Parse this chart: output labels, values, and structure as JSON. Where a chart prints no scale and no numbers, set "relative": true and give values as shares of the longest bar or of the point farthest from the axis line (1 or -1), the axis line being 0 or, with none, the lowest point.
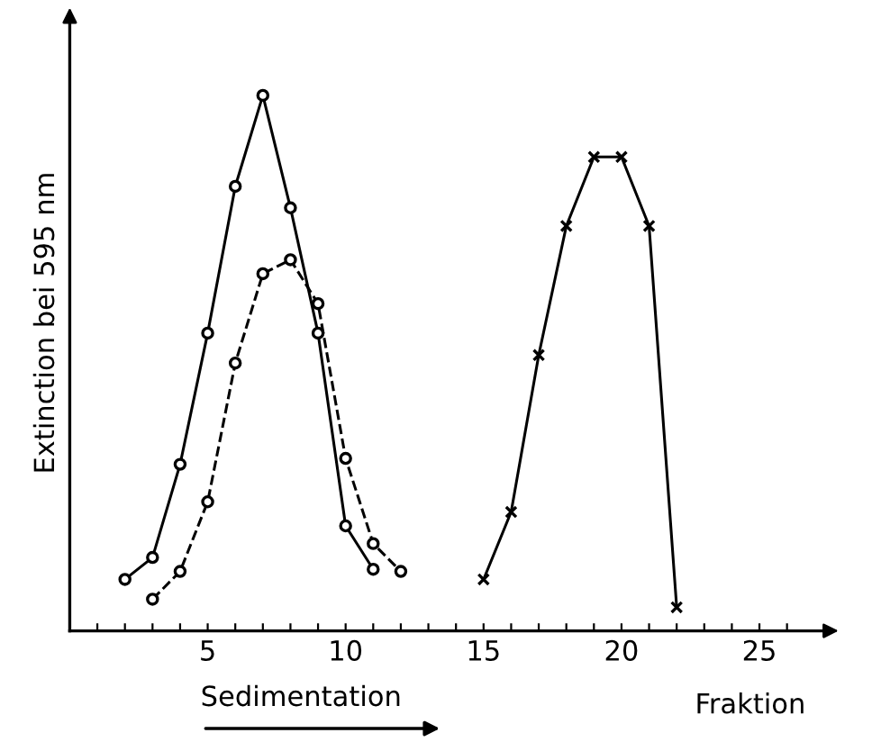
{
  "chart_data": {
    "type": "line",
    "relative": true,
    "xlabel": "Fraktion",
    "ylabel": "Extinction bei 595 nm",
    "annotations": [
      "Sedimentation"
    ],
    "xlim": [
      0,
      27.5
    ],
    "xticks": [
      {
        "value": 1,
        "label": null
      },
      {
        "value": 2,
        "label": null
      },
      {
        "value": 3,
        "label": null
      },
      {
        "value": 4,
        "label": null
      },
      5,
      {
        "value": 6,
        "label": null
      },
      {
        "value": 7,
        "label": null
      },
      {
        "value": 8,
        "label": null
      },
      {
        "value": 9,
        "label": null
      },
      10,
      {
        "value": 11,
        "label": null
      },
      {
        "value": 12,
        "label": null
      },
      {
        "value": 13,
        "label": null
      },
      {
        "value": 14,
        "label": null
      },
      15,
      {
        "value": 16,
        "label": null
      },
      {
        "value": 17,
        "label": null
      },
      {
        "value": 18,
        "label": null
      },
      {
        "value": 19,
        "label": null
      },
      20,
      {
        "value": 21,
        "label": null
      },
      {
        "value": 22,
        "label": null
      },
      {
        "value": 23,
        "label": null
      },
      {
        "value": 24,
        "label": null
      },
      25,
      {
        "value": 26,
        "label": null
      }
    ],
    "grid": false,
    "legend": false,
    "series": [
      {
        "color": "#000000",
        "marker": "circle",
        "line_style": "solid",
        "x": [
          2,
          3,
          4,
          5,
          6,
          7,
          8,
          9,
          10,
          11
        ],
        "values": [
          0.096,
          0.137,
          0.311,
          0.556,
          0.83,
          1,
          0.79,
          0.556,
          0.196,
          0.115
        ]
      },
      {
        "color": "#000000",
        "marker": "circle",
        "line_style": "dashed",
        "x": [
          3,
          4,
          5,
          6,
          7,
          8,
          9,
          10,
          11,
          12
        ],
        "values": [
          0.059,
          0.111,
          0.241,
          0.5,
          0.667,
          0.693,
          0.611,
          0.322,
          0.163,
          0.111
        ]
      },
      {
        "color": "#000000",
        "marker": "cross",
        "line_style": "solid",
        "x": [
          15,
          16,
          17,
          18,
          19,
          20,
          21,
          22
        ],
        "values": [
          0.096,
          0.222,
          0.515,
          0.756,
          0.885,
          0.885,
          0.756,
          0.044
        ]
      }
    ]
  }
}
